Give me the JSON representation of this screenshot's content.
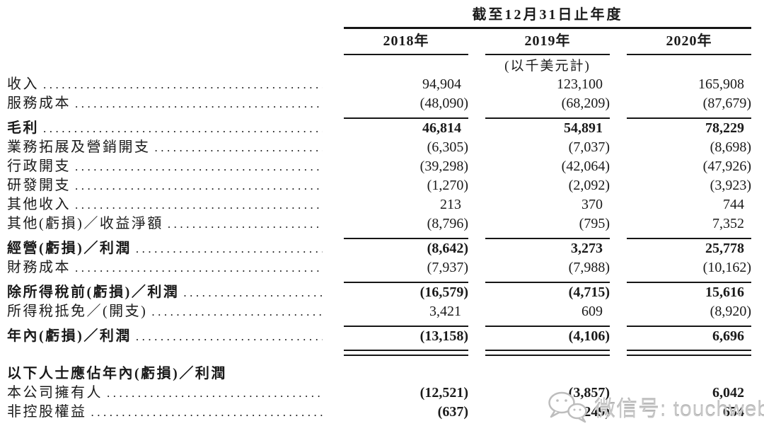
{
  "page": {
    "background": "#ffffff",
    "text_color": "#1a1a1a",
    "rule_color": "#161616"
  },
  "table": {
    "period_header": "截至12月31日止年度",
    "columns": [
      "2018年",
      "2019年",
      "2020年"
    ],
    "unit_note": "(以千美元計)",
    "rows": [
      {
        "type": "data",
        "label": "收入",
        "values": [
          "94,904",
          "123,100",
          "165,908"
        ]
      },
      {
        "type": "data",
        "label": "服務成本",
        "values": [
          "(48,090)",
          "(68,209)",
          "(87,679)"
        ]
      },
      {
        "type": "rule"
      },
      {
        "type": "data",
        "label": "毛利",
        "bold": true,
        "values": [
          "46,814",
          "54,891",
          "78,229"
        ]
      },
      {
        "type": "data",
        "label": "業務拓展及營銷開支",
        "values": [
          "(6,305)",
          "(7,037)",
          "(8,698)"
        ]
      },
      {
        "type": "data",
        "label": "行政開支",
        "values": [
          "(39,298)",
          "(42,064)",
          "(47,926)"
        ]
      },
      {
        "type": "data",
        "label": "研發開支",
        "values": [
          "(1,270)",
          "(2,092)",
          "(3,923)"
        ]
      },
      {
        "type": "data",
        "label": "其他收入",
        "values": [
          "213",
          "370",
          "744"
        ]
      },
      {
        "type": "data",
        "label": "其他(虧損)／收益淨額",
        "values": [
          "(8,796)",
          "(795)",
          "7,352"
        ]
      },
      {
        "type": "rule"
      },
      {
        "type": "data",
        "label": "經營(虧損)／利潤",
        "bold": true,
        "values": [
          "(8,642)",
          "3,273",
          "25,778"
        ]
      },
      {
        "type": "data",
        "label": "財務成本",
        "values": [
          "(7,937)",
          "(7,988)",
          "(10,162)"
        ]
      },
      {
        "type": "rule"
      },
      {
        "type": "data",
        "label": "除所得稅前(虧損)／利潤",
        "bold": true,
        "values": [
          "(16,579)",
          "(4,715)",
          "15,616"
        ]
      },
      {
        "type": "data",
        "label": "所得稅抵免／(開支)",
        "values": [
          "3,421",
          "609",
          "(8,920)"
        ]
      },
      {
        "type": "rule"
      },
      {
        "type": "data",
        "label": "年內(虧損)／利潤",
        "bold": true,
        "values": [
          "(13,158)",
          "(4,106)",
          "6,696"
        ]
      },
      {
        "type": "dblrule"
      },
      {
        "type": "spacer"
      },
      {
        "type": "section",
        "label": "以下人士應佔年內(虧損)／利潤",
        "bold": true
      },
      {
        "type": "data",
        "label": "本公司擁有人",
        "values_bold": true,
        "values": [
          "(12,521)",
          "(3,857)",
          "6,042"
        ]
      },
      {
        "type": "data",
        "label": "非控股權益",
        "values_bold": true,
        "values": [
          "(637)",
          "(249)",
          "654"
        ]
      }
    ]
  },
  "watermark": {
    "icon": "wechat-icon",
    "text": "微信号: touchweb"
  }
}
